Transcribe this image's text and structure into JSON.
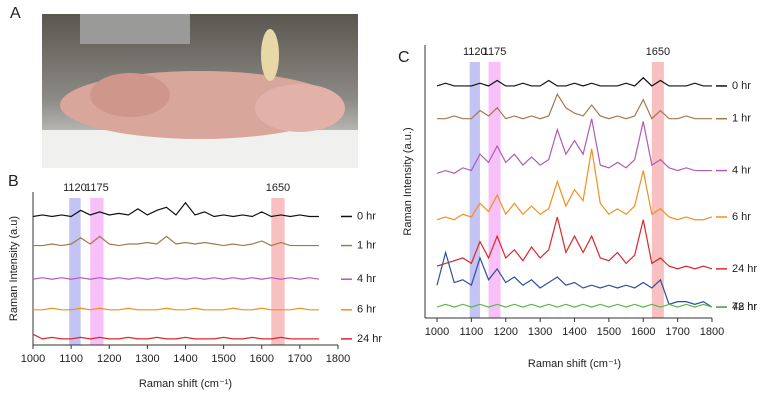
{
  "photo": {
    "label": "A"
  },
  "chart_data": [
    {
      "type": "line",
      "panel_label": "B",
      "xlabel": "Raman shift (cm⁻¹)",
      "ylabel": "Raman Intensity (a.u)",
      "xlim": [
        1000,
        1800
      ],
      "xticks": [
        1000,
        1100,
        1200,
        1300,
        1400,
        1500,
        1600,
        1700,
        1800
      ],
      "ylim": [
        0,
        100
      ],
      "bands": [
        {
          "label": "1120",
          "from": 1095,
          "to": 1125,
          "color": "#c4c4f4"
        },
        {
          "label": "1175",
          "from": 1150,
          "to": 1185,
          "color": "#f8c0f8"
        },
        {
          "label": "1650",
          "from": 1625,
          "to": 1660,
          "color": "#f8c0c0"
        }
      ],
      "x": [
        1000,
        1025,
        1050,
        1075,
        1100,
        1125,
        1150,
        1175,
        1200,
        1225,
        1250,
        1275,
        1300,
        1325,
        1350,
        1375,
        1400,
        1425,
        1450,
        1475,
        1500,
        1525,
        1550,
        1575,
        1600,
        1625,
        1650,
        1675,
        1700,
        1725,
        1750
      ],
      "series": [
        {
          "name": "0 hr",
          "color": "#111111",
          "values": [
            84,
            85,
            84,
            85,
            84,
            88,
            85,
            87,
            85,
            86,
            85,
            89,
            85,
            88,
            90,
            85,
            93,
            85,
            87,
            84,
            85,
            84,
            85,
            84,
            87,
            84,
            85,
            84,
            85,
            84,
            84
          ]
        },
        {
          "name": "1 hr",
          "color": "#a5784a",
          "values": [
            65,
            65,
            66,
            65,
            66,
            70,
            66,
            71,
            66,
            65,
            66,
            66,
            67,
            66,
            71,
            66,
            67,
            66,
            67,
            66,
            65,
            66,
            65,
            66,
            68,
            65,
            67,
            65,
            65,
            65,
            65
          ]
        },
        {
          "name": "4 hr",
          "color": "#b05cb5",
          "values": [
            43,
            44,
            43,
            44,
            43,
            44,
            43,
            44,
            43,
            44,
            43,
            44,
            43,
            44,
            43,
            44,
            43,
            44,
            43,
            44,
            43,
            44,
            43,
            44,
            43,
            44,
            43,
            44,
            43,
            44,
            43
          ]
        },
        {
          "name": "6 hr",
          "color": "#f09020",
          "values": [
            23,
            23,
            24,
            23,
            23,
            24,
            23,
            24,
            23,
            23,
            24,
            23,
            23,
            23,
            24,
            23,
            23,
            24,
            23,
            23,
            23,
            24,
            23,
            23,
            24,
            23,
            23,
            23,
            24,
            23,
            23
          ]
        },
        {
          "name": "24 hr",
          "color": "#d8282c",
          "values": [
            7,
            4,
            5,
            4,
            4,
            5,
            4,
            5,
            4,
            4,
            5,
            4,
            4,
            5,
            4,
            4,
            5,
            4,
            4,
            4,
            5,
            4,
            4,
            5,
            4,
            4,
            5,
            4,
            4,
            4,
            4
          ]
        }
      ]
    },
    {
      "type": "line",
      "panel_label": "C",
      "xlabel": "Raman shift (cm⁻¹)",
      "ylabel": "Raman Intensity (a.u.)",
      "xlim": [
        1000,
        1800
      ],
      "xticks": [
        1000,
        1100,
        1200,
        1300,
        1400,
        1500,
        1600,
        1700,
        1800
      ],
      "ylim": [
        0,
        100
      ],
      "bands": [
        {
          "label": "1120",
          "from": 1095,
          "to": 1125,
          "color": "#c4c4f4"
        },
        {
          "label": "1175",
          "from": 1150,
          "to": 1185,
          "color": "#f8c0f8"
        },
        {
          "label": "1650",
          "from": 1625,
          "to": 1660,
          "color": "#f8c0c0"
        }
      ],
      "x": [
        1000,
        1025,
        1050,
        1075,
        1100,
        1125,
        1150,
        1175,
        1200,
        1225,
        1250,
        1275,
        1300,
        1325,
        1350,
        1375,
        1400,
        1425,
        1450,
        1475,
        1500,
        1525,
        1550,
        1575,
        1600,
        1625,
        1650,
        1675,
        1700,
        1725,
        1750,
        1775,
        1800
      ],
      "series": [
        {
          "name": "0 hr",
          "color": "#111111",
          "values": [
            85,
            86,
            85,
            85,
            85,
            86,
            85,
            87,
            85,
            85,
            86,
            85,
            85,
            87,
            85,
            85,
            86,
            85,
            86,
            85,
            85,
            85,
            86,
            85,
            88,
            85,
            87,
            85,
            85,
            85,
            86,
            85,
            85
          ]
        },
        {
          "name": "1 hr",
          "color": "#a5784a",
          "values": [
            73,
            73,
            74,
            73,
            73,
            76,
            74,
            77,
            73,
            74,
            73,
            74,
            73,
            74,
            82,
            77,
            75,
            74,
            78,
            74,
            73,
            74,
            73,
            74,
            80,
            73,
            76,
            73,
            73,
            74,
            73,
            73,
            73
          ]
        },
        {
          "name": "4 hr",
          "color": "#b05cb5",
          "values": [
            53,
            54,
            53,
            55,
            54,
            60,
            57,
            63,
            57,
            60,
            56,
            59,
            56,
            58,
            69,
            60,
            65,
            60,
            73,
            56,
            55,
            57,
            55,
            58,
            72,
            56,
            58,
            55,
            54,
            55,
            54,
            54,
            54
          ]
        },
        {
          "name": "6 hr",
          "color": "#f09020",
          "values": [
            36,
            37,
            36,
            38,
            37,
            42,
            39,
            45,
            38,
            42,
            38,
            41,
            38,
            40,
            50,
            41,
            47,
            43,
            62,
            42,
            38,
            40,
            38,
            41,
            54,
            38,
            40,
            37,
            36,
            37,
            36,
            36,
            37
          ]
        },
        {
          "name": "24 hr",
          "color": "#d8282c",
          "values": [
            19,
            20,
            21,
            22,
            20,
            28,
            22,
            30,
            22,
            25,
            21,
            26,
            22,
            25,
            37,
            24,
            30,
            24,
            30,
            22,
            21,
            24,
            20,
            23,
            36,
            20,
            22,
            19,
            18,
            19,
            18,
            19,
            18
          ]
        },
        {
          "name": "48 hr",
          "color": "#2f4f9e",
          "values": [
            12,
            24,
            13,
            14,
            12,
            22,
            14,
            18,
            13,
            15,
            12,
            14,
            11,
            13,
            15,
            12,
            13,
            11,
            12,
            11,
            12,
            11,
            12,
            11,
            13,
            11,
            14,
            5,
            6,
            6,
            5,
            6,
            4
          ]
        },
        {
          "name": "72 hr",
          "color": "#5cb84a",
          "values": [
            4,
            5,
            4,
            5,
            4,
            5,
            4,
            5,
            4,
            5,
            4,
            5,
            4,
            5,
            4,
            5,
            4,
            5,
            4,
            5,
            4,
            5,
            4,
            5,
            4,
            5,
            4,
            5,
            4,
            5,
            4,
            5,
            4
          ]
        }
      ]
    }
  ]
}
